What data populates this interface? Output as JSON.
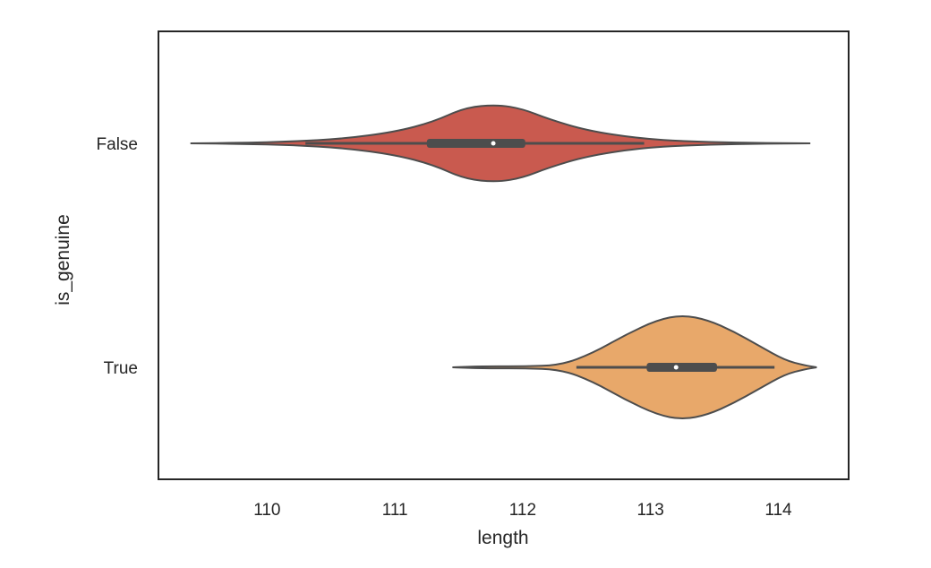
{
  "chart_data": {
    "type": "violin",
    "orientation": "horizontal",
    "xlabel": "length",
    "ylabel": "is_genuine",
    "xlim": [
      109.15,
      114.55
    ],
    "x_ticks": [
      110,
      111,
      112,
      113,
      114
    ],
    "categories": [
      "False",
      "True"
    ],
    "grid": false,
    "legend": "none",
    "series": [
      {
        "category": "False",
        "color": "#c95a4f",
        "min": 109.4,
        "whisker_low": 110.3,
        "q1": 111.25,
        "median": 111.77,
        "q3": 112.02,
        "whisker_high": 112.95,
        "max": 114.25,
        "density": [
          [
            109.4,
            0.0
          ],
          [
            109.8,
            0.008
          ],
          [
            110.2,
            0.025
          ],
          [
            110.6,
            0.065
          ],
          [
            111.0,
            0.16
          ],
          [
            111.3,
            0.3
          ],
          [
            111.55,
            0.5
          ],
          [
            111.8,
            0.54
          ],
          [
            112.0,
            0.48
          ],
          [
            112.2,
            0.34
          ],
          [
            112.5,
            0.18
          ],
          [
            112.9,
            0.07
          ],
          [
            113.3,
            0.025
          ],
          [
            113.8,
            0.008
          ],
          [
            114.25,
            0.0
          ]
        ]
      },
      {
        "category": "True",
        "color": "#e8a86a",
        "min": 111.45,
        "whisker_low": 112.42,
        "q1": 112.97,
        "median": 113.2,
        "q3": 113.52,
        "whisker_high": 113.97,
        "max": 114.3,
        "density": [
          [
            111.45,
            0.0
          ],
          [
            111.7,
            0.015
          ],
          [
            112.0,
            0.012
          ],
          [
            112.3,
            0.03
          ],
          [
            112.55,
            0.2
          ],
          [
            112.8,
            0.45
          ],
          [
            113.05,
            0.66
          ],
          [
            113.25,
            0.73
          ],
          [
            113.45,
            0.66
          ],
          [
            113.65,
            0.5
          ],
          [
            113.85,
            0.3
          ],
          [
            114.05,
            0.1
          ],
          [
            114.2,
            0.03
          ],
          [
            114.3,
            0.0
          ]
        ]
      }
    ]
  }
}
